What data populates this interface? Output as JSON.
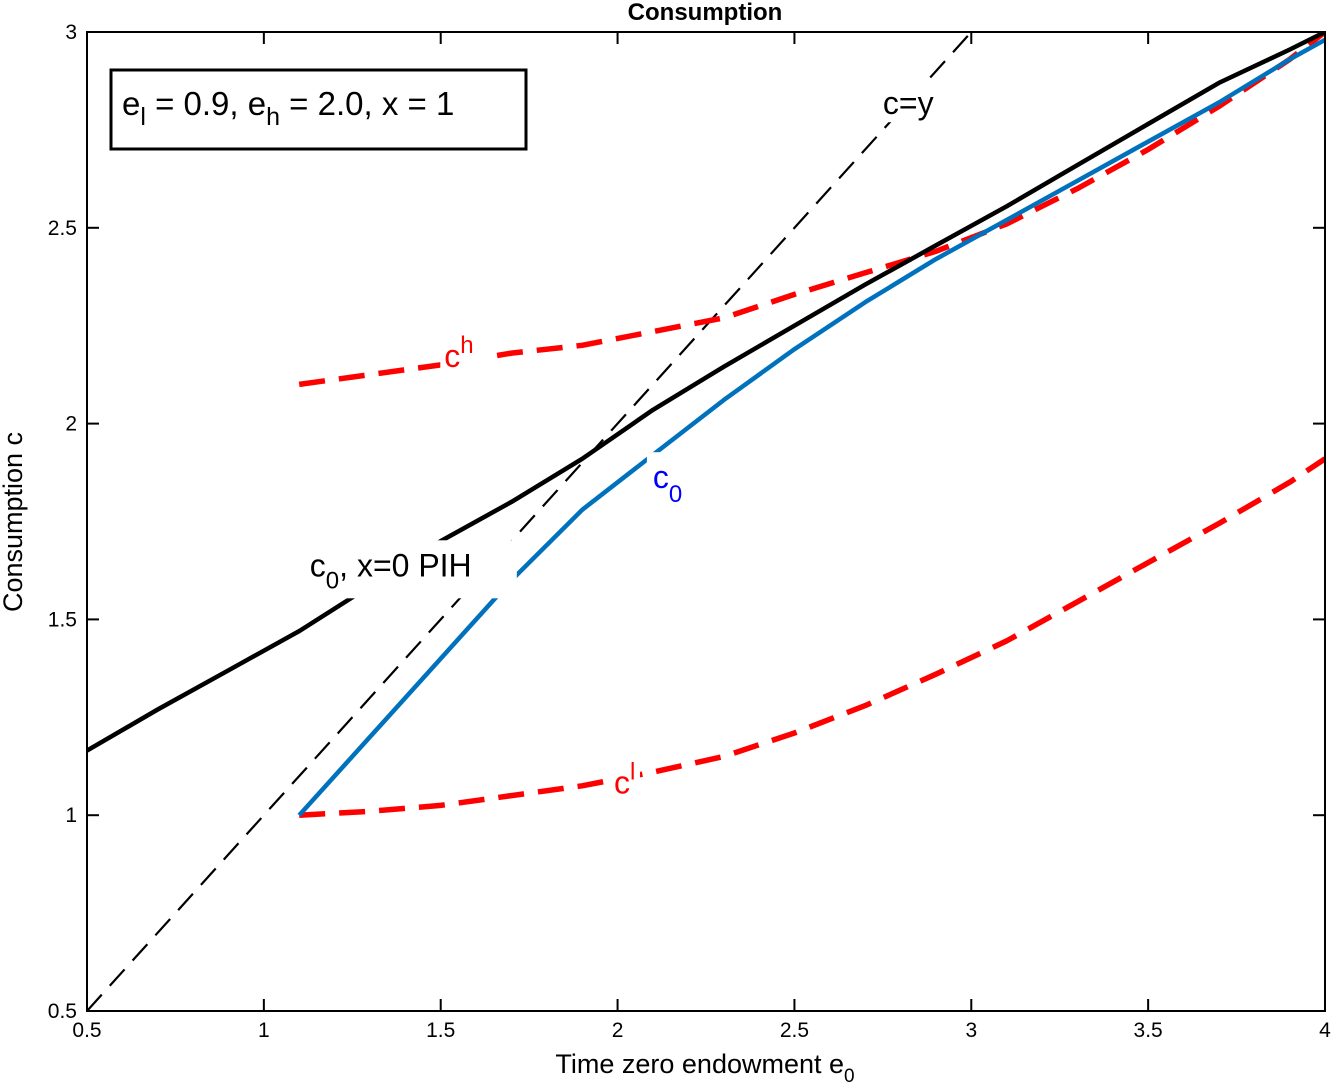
{
  "chart_data": {
    "type": "line",
    "title": "Consumption",
    "xlabel": "Time zero endowment e",
    "xlabel_subscript": "0",
    "ylabel": "Consumption c",
    "xlim": [
      0.5,
      4
    ],
    "ylim": [
      0.5,
      3
    ],
    "xticks": [
      0.5,
      1,
      1.5,
      2,
      2.5,
      3,
      3.5,
      4
    ],
    "xtick_labels": [
      "0.5",
      "1",
      "1.5",
      "2",
      "2.5",
      "3",
      "3.5",
      "4"
    ],
    "yticks": [
      0.5,
      1,
      1.5,
      2,
      2.5,
      3
    ],
    "ytick_labels": [
      "0.5",
      "1",
      "1.5",
      "2",
      "2.5",
      "3"
    ],
    "legend_box": {
      "parts": [
        "e",
        "l",
        " = 0.9, e",
        "h",
        " = 2.0, x = 1"
      ],
      "placement": "top-left"
    },
    "colors": {
      "black": "#000000",
      "blue": "#0072BD",
      "red": "#FF0000",
      "label_blue": "#0000FF"
    },
    "series": [
      {
        "name": "c=y",
        "style": "dashed",
        "color": "#000000",
        "x": [
          0.5,
          3.0
        ],
        "y": [
          0.5,
          3.0
        ]
      },
      {
        "name": "c0, x=0 PIH",
        "style": "solid",
        "color": "#000000",
        "x": [
          0.5,
          0.7,
          0.9,
          1.1,
          1.3,
          1.5,
          1.7,
          1.9,
          2.1,
          2.3,
          2.5,
          2.7,
          2.9,
          3.1,
          3.3,
          3.5,
          3.7,
          3.9,
          4.0
        ],
        "y": [
          1.165,
          1.27,
          1.37,
          1.47,
          1.585,
          1.7,
          1.8,
          1.91,
          2.035,
          2.145,
          2.25,
          2.355,
          2.455,
          2.555,
          2.66,
          2.765,
          2.87,
          2.955,
          3.0
        ]
      },
      {
        "name": "c0",
        "style": "solid",
        "color": "#0072BD",
        "x": [
          1.1,
          1.3,
          1.5,
          1.7,
          1.9,
          2.1,
          2.3,
          2.5,
          2.7,
          2.9,
          3.1,
          3.3,
          3.5,
          3.7,
          3.9,
          4.0
        ],
        "y": [
          1.0,
          1.2,
          1.4,
          1.6,
          1.78,
          1.92,
          2.06,
          2.19,
          2.31,
          2.42,
          2.52,
          2.62,
          2.72,
          2.82,
          2.93,
          2.98
        ]
      },
      {
        "name": "c^h",
        "style": "dashed",
        "color": "#FF0000",
        "x": [
          1.1,
          1.3,
          1.5,
          1.7,
          1.9,
          2.1,
          2.3,
          2.5,
          2.7,
          2.9,
          3.1,
          3.3,
          3.5,
          3.7,
          3.9,
          4.0
        ],
        "y": [
          2.1,
          2.125,
          2.15,
          2.18,
          2.2,
          2.235,
          2.27,
          2.33,
          2.385,
          2.44,
          2.51,
          2.6,
          2.7,
          2.81,
          2.93,
          3.0
        ]
      },
      {
        "name": "c^l",
        "style": "dashed",
        "color": "#FF0000",
        "x": [
          1.1,
          1.3,
          1.5,
          1.7,
          1.9,
          2.1,
          2.3,
          2.5,
          2.7,
          2.9,
          3.1,
          3.3,
          3.5,
          3.7,
          3.9,
          4.0
        ],
        "y": [
          1.0,
          1.01,
          1.025,
          1.05,
          1.075,
          1.11,
          1.15,
          1.21,
          1.28,
          1.36,
          1.445,
          1.545,
          1.645,
          1.745,
          1.85,
          1.91
        ]
      }
    ],
    "annotations": {
      "cy": {
        "text": "c=y",
        "x": 2.75,
        "y": 2.79
      },
      "pih": {
        "base": "c",
        "sub": "0",
        "rest": ", x=0 PIH",
        "x": 1.13,
        "y": 1.61
      },
      "c0": {
        "base": "c",
        "sub": "0",
        "x": 2.1,
        "y": 1.835
      },
      "ch": {
        "base": "c",
        "sup": "h",
        "x": 1.51,
        "y": 2.145
      },
      "cl": {
        "base": "c",
        "sup": "l",
        "x": 1.99,
        "y": 1.055
      }
    }
  }
}
